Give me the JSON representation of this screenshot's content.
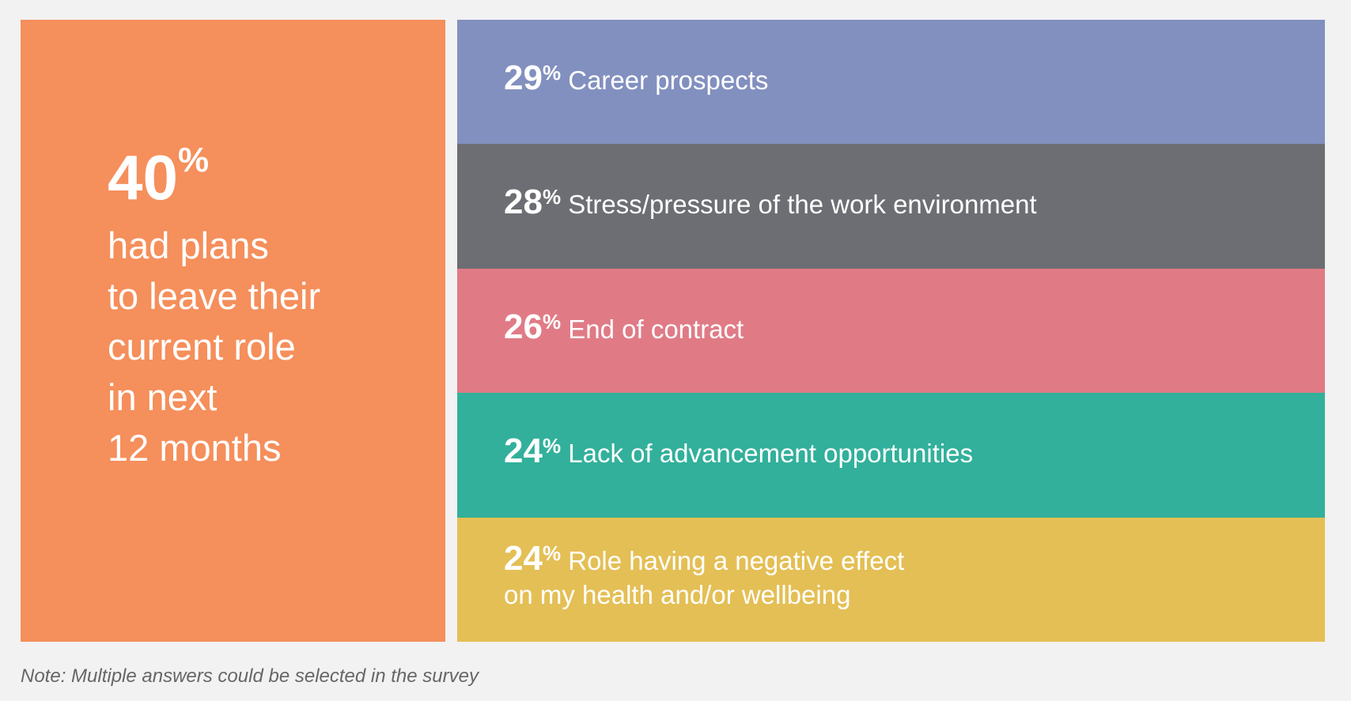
{
  "chart_data": {
    "type": "table",
    "headline": {
      "value": "40",
      "unit": "%",
      "text": "had plans to leave their current role in next 12 months",
      "lines": [
        "had plans",
        "to leave their",
        "current role",
        "in next",
        "12 months"
      ]
    },
    "categories": [
      "Career prospects",
      "Stress/pressure of the work environment",
      "End of contract",
      "Lack of advancement opportunities",
      "Role having a negative effect on my health and/or wellbeing"
    ],
    "values": [
      29,
      28,
      26,
      24,
      24
    ],
    "unit": "%",
    "colors": [
      "#8290bf",
      "#6d6e73",
      "#e07b86",
      "#32b09b",
      "#e4bf55"
    ],
    "rows": [
      {
        "value": "29",
        "label": "Career prospects"
      },
      {
        "value": "28",
        "label": "Stress/pressure of the work environment"
      },
      {
        "value": "26",
        "label": "End of contract"
      },
      {
        "value": "24",
        "label": "Lack of advancement opportunities"
      },
      {
        "value": "24",
        "label": "Role having a negative effect",
        "label2": "on my health and/or wellbeing"
      }
    ],
    "note": "Note: Multiple answers could be selected in the survey"
  }
}
